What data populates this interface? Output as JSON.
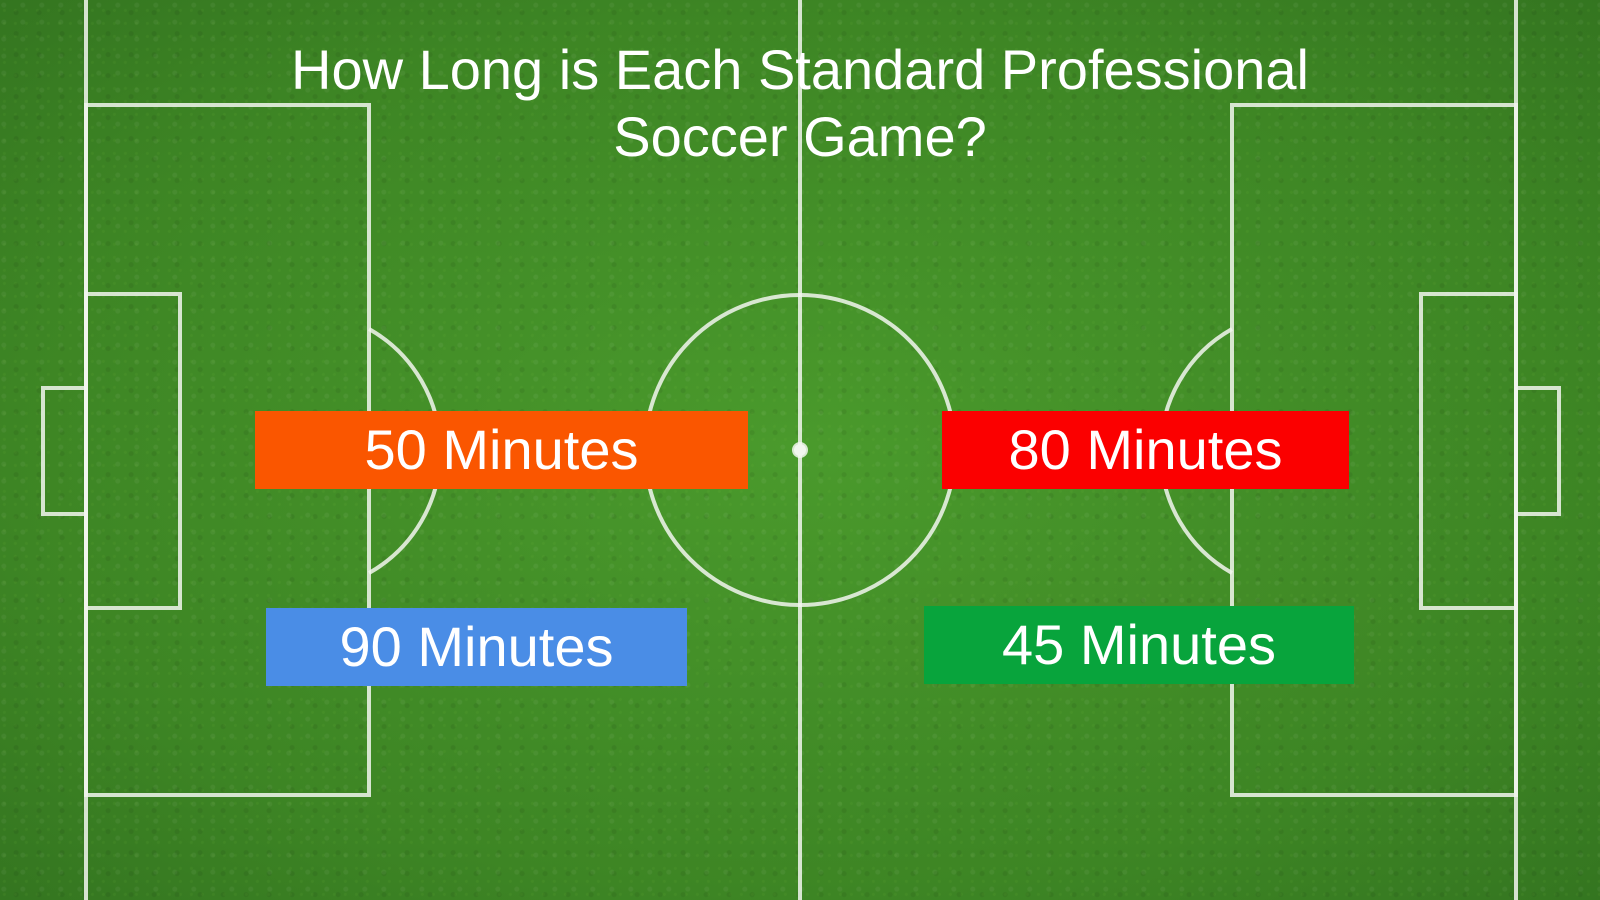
{
  "slide": {
    "title": "How Long is Each Standard Professional Soccer Game?"
  },
  "answers": [
    {
      "label": "50 Minutes",
      "color": "#fa5600"
    },
    {
      "label": "80 Minutes",
      "color": "#fb0000"
    },
    {
      "label": "90 Minutes",
      "color": "#4a8de6"
    },
    {
      "label": "45 Minutes",
      "color": "#08a43c"
    }
  ],
  "background": {
    "grass_color": "#3f8a26",
    "line_color": "#ffffff"
  }
}
